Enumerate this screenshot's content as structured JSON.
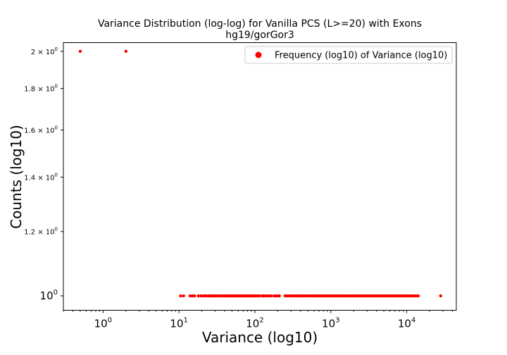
{
  "chart_data": {
    "type": "scatter",
    "title": "Variance Distribution (log-log) for Vanilla PCS (L>=20) with Exons",
    "subtitle": "hg19/gorGor3",
    "xlabel": "Variance (log10)",
    "ylabel": "Counts (log10)",
    "x_scale": "log",
    "y_scale": "log",
    "xlim": [
      0.3,
      45000
    ],
    "ylim": [
      0.96,
      2.05
    ],
    "grid": false,
    "legend_position": "upper right",
    "x_ticks": [
      {
        "base": "10",
        "exp": "0"
      },
      {
        "base": "10",
        "exp": "1"
      },
      {
        "base": "10",
        "exp": "2"
      },
      {
        "base": "10",
        "exp": "3"
      },
      {
        "base": "10",
        "exp": "4"
      }
    ],
    "y_ticks": [
      {
        "coef": "",
        "exp": "0",
        "value": 1.0
      },
      {
        "coef": "1.2 × ",
        "exp": "0",
        "value": 1.2
      },
      {
        "coef": "1.4 × ",
        "exp": "0",
        "value": 1.4
      },
      {
        "coef": "1.6 × ",
        "exp": "0",
        "value": 1.6
      },
      {
        "coef": "1.8 × ",
        "exp": "0",
        "value": 1.8
      },
      {
        "coef": "2 × ",
        "exp": "0",
        "value": 2.0
      }
    ],
    "series": [
      {
        "name": "Frequency (log10) of Variance (log10)",
        "color": "#ff0000",
        "points_y2": [
          0.5,
          2.0
        ],
        "points_y1_x": [
          10.5,
          11.5,
          14,
          15,
          16,
          18,
          19.5,
          21,
          22,
          23,
          24.5,
          26,
          27,
          28.5,
          30,
          31,
          33,
          35,
          37,
          38,
          40,
          42,
          44,
          46,
          48,
          50,
          52,
          55,
          57,
          60,
          62,
          65,
          68,
          70,
          73,
          76,
          80,
          84,
          88,
          92,
          96,
          100,
          105,
          110,
          115,
          125,
          130,
          135,
          145,
          155,
          165,
          180,
          190,
          200,
          210,
          250,
          260,
          275,
          290,
          310,
          330,
          350,
          370,
          390,
          410,
          430,
          460,
          490,
          520,
          550,
          580,
          610,
          640,
          680,
          720,
          760,
          800,
          850,
          900,
          950,
          1000,
          1060,
          1120,
          1180,
          1250,
          1320,
          1400,
          1480,
          1560,
          1650,
          1750,
          1850,
          1950,
          2060,
          2180,
          2300,
          2430,
          2570,
          2720,
          2870,
          3030,
          3200,
          3380,
          3570,
          3770,
          3980,
          4200,
          4440,
          4690,
          4950,
          5230,
          5520,
          5830,
          6160,
          6500,
          6870,
          7250,
          7660,
          8090,
          8540,
          9020,
          9520,
          10000,
          10600,
          11200,
          11800,
          12500,
          13300,
          14200,
          28000
        ]
      }
    ]
  }
}
